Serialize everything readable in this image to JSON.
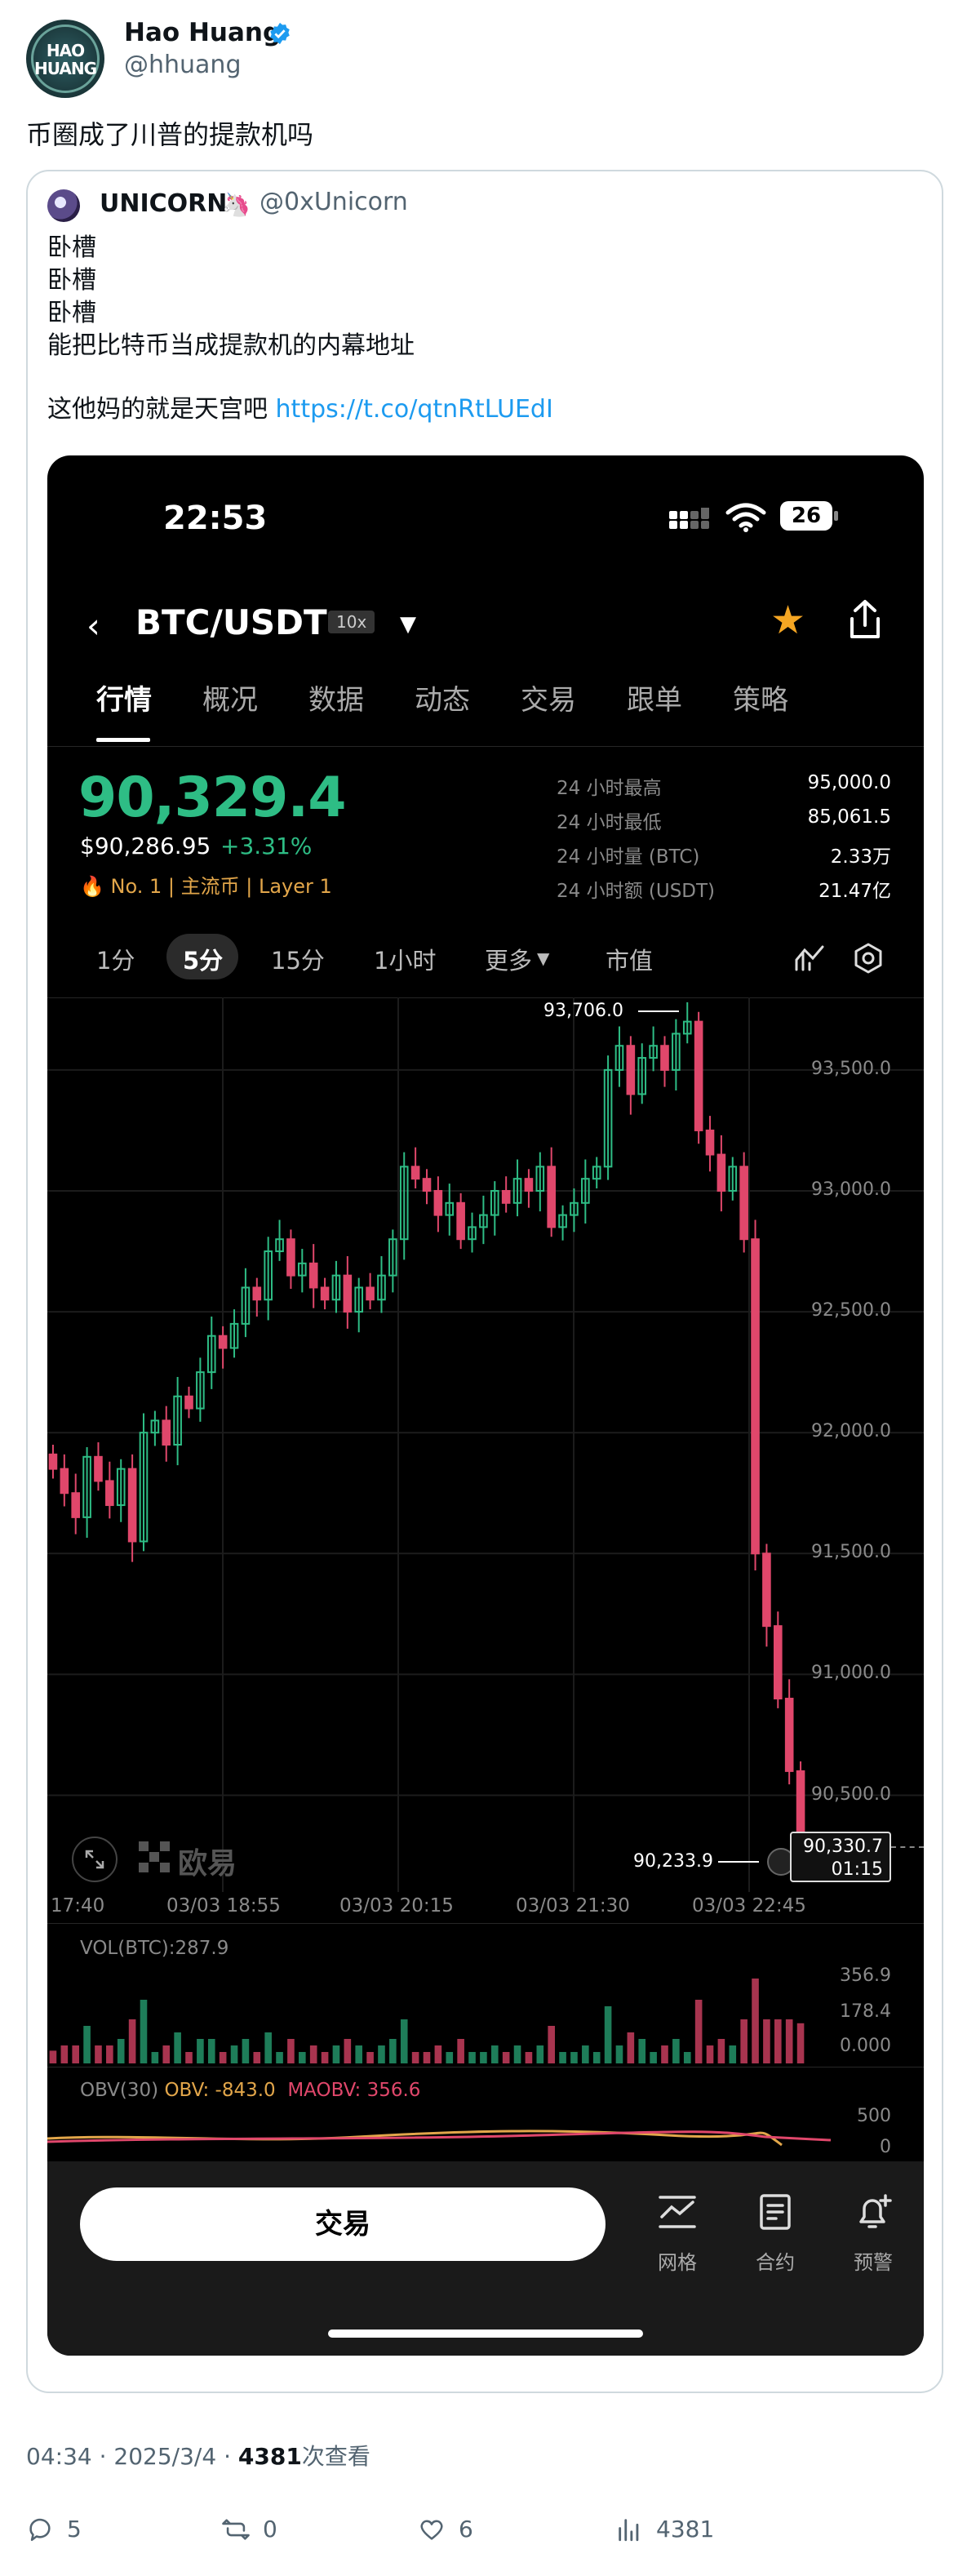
{
  "tweet": {
    "author_name": "Hao Huang",
    "author_handle": "@hhuang",
    "avatar_text": [
      "HAO",
      "HUANG"
    ],
    "text": "币圈成了川普的提款机吗",
    "quoted": {
      "name": "UNICORN",
      "name_emoji": "🦄",
      "handle": "@0xUnicorn",
      "lines": [
        "卧槽",
        "卧槽",
        "卧槽",
        "能把比特币当成提款机的内幕地址"
      ],
      "last_line_text": "这他妈的就是天宫吧 ",
      "link": "https://t.co/qtnRtLUEdI"
    },
    "meta": {
      "time": "04:34",
      "date": "2025/3/4",
      "views": "4381",
      "views_label": "次查看"
    },
    "actions": {
      "replies": "5",
      "reposts": "0",
      "likes": "6",
      "views": "4381"
    }
  },
  "app": {
    "status_time": "22:53",
    "battery": "26",
    "pair": "BTC/USDT",
    "leverage": "10x",
    "tabs": [
      "行情",
      "概况",
      "数据",
      "动态",
      "交易",
      "跟单",
      "策略"
    ],
    "active_tab": "行情",
    "price": "90,329.4",
    "price_usd": "$90,286.95",
    "change": "+3.31%",
    "tags": "No. 1  |  主流币  |  Layer 1",
    "stats": [
      {
        "label": "24 小时最高",
        "value": "95,000.0"
      },
      {
        "label": "24 小时最低",
        "value": "85,061.5"
      },
      {
        "label": "24 小时量 (BTC)",
        "value": "2.33万"
      },
      {
        "label": "24 小时额 (USDT)",
        "value": "21.47亿"
      }
    ],
    "timeframes": [
      "1分",
      "5分",
      "15分",
      "1小时",
      "更多",
      "市值"
    ],
    "active_timeframe": "5分",
    "watermark": "欧易",
    "high_label": "93,706.0",
    "low_label": "90,233.9",
    "last_price_box": "90,330.7",
    "countdown": "01:15",
    "vol_title": "VOL(BTC):287.9",
    "vol_axis": [
      "356.9",
      "178.4",
      "0.000"
    ],
    "obv_title_prefix": "OBV(30) ",
    "obv_value": "OBV: -843.0",
    "maobv_value": "MAOBV: 356.6",
    "obv_axis": [
      "500",
      "0"
    ],
    "trade_button": "交易",
    "bottom_actions": [
      "网格",
      "合约",
      "预警"
    ],
    "colors": {
      "up": "#2ebd85",
      "down": "#e0476b",
      "accent": "#f5a623"
    }
  },
  "chart_data": {
    "type": "candlestick",
    "x_ticks": [
      "17:40",
      "03/03 18:55",
      "03/03 20:15",
      "03/03 21:30",
      "03/03 22:45"
    ],
    "y_ticks": [
      90500,
      91000,
      91500,
      92000,
      92500,
      93000,
      93500
    ],
    "ylim": [
      90100,
      93800
    ],
    "grid": true,
    "close": [
      91850,
      91750,
      91650,
      91900,
      91800,
      91700,
      91850,
      91550,
      92000,
      92050,
      91950,
      92150,
      92100,
      92250,
      92400,
      92350,
      92450,
      92600,
      92550,
      92750,
      92800,
      92650,
      92700,
      92600,
      92550,
      92650,
      92500,
      92600,
      92550,
      92650,
      92800,
      93100,
      93050,
      93000,
      92900,
      92950,
      92800,
      92850,
      92900,
      93000,
      92950,
      93050,
      93000,
      93100,
      92850,
      92900,
      92950,
      93050,
      93100,
      93500,
      93600,
      93400,
      93550,
      93600,
      93500,
      93650,
      93700,
      93250,
      93150,
      93000,
      93100,
      92800,
      91500,
      91200,
      90900,
      90600,
      90330
    ]
  }
}
